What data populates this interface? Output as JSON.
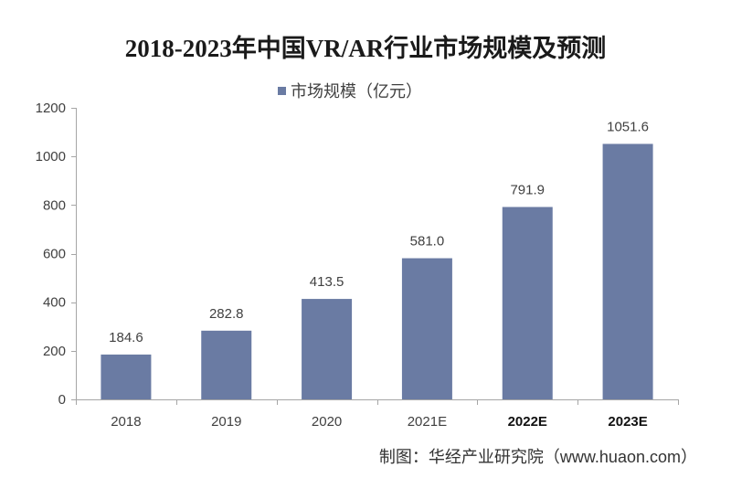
{
  "chart_data": {
    "type": "bar",
    "title": "2018-2023年中国VR/AR行业市场规模及预测",
    "categories": [
      "2018",
      "2019",
      "2020",
      "2021E",
      "2022E",
      "2023E"
    ],
    "category_label_bold": [
      false,
      false,
      false,
      false,
      true,
      true
    ],
    "series": [
      {
        "name": "市场规模（亿元）",
        "values": [
          184.6,
          282.8,
          413.5,
          581.0,
          791.9,
          1051.6
        ],
        "color": "#6A7BA3"
      }
    ],
    "data_labels": [
      "184.6",
      "282.8",
      "413.5",
      "581.0",
      "791.9",
      "1051.6"
    ],
    "xlabel": "",
    "ylabel": "",
    "ylim": [
      0,
      1200
    ],
    "yticks": [
      0,
      200,
      400,
      600,
      800,
      1000,
      1200
    ],
    "grid": false,
    "legend_position": "top"
  },
  "source": "制图：华经产业研究院（www.huaon.com）"
}
